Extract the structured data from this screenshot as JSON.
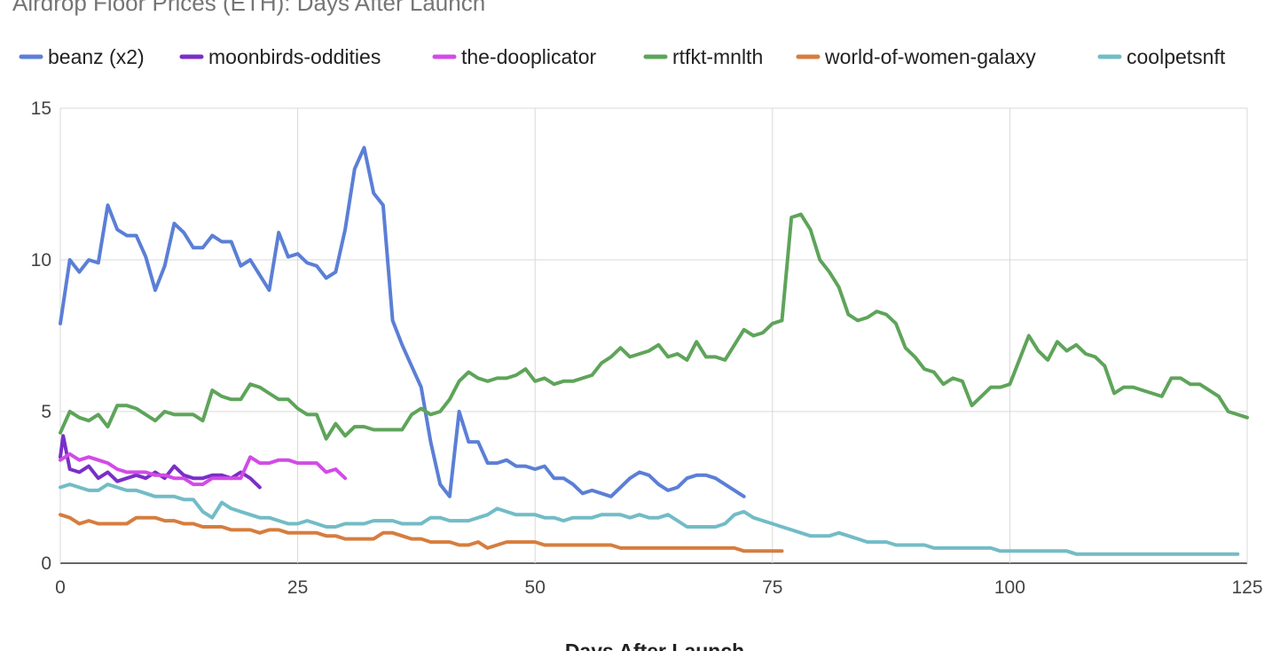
{
  "chart_data": {
    "type": "line",
    "title": "Airdrop Floor Prices (ETH): Days After Launch",
    "xlabel": "Days After Launch",
    "ylabel": "",
    "xlim": [
      0,
      125
    ],
    "ylim": [
      0,
      15
    ],
    "x_ticks": [
      0,
      25,
      50,
      75,
      100,
      125
    ],
    "y_ticks": [
      0,
      5,
      10,
      15
    ],
    "grid": true,
    "legend_position": "top",
    "series": [
      {
        "name": "beanz (x2)",
        "color": "#5b7fd6",
        "x": [
          0,
          1,
          2,
          3,
          4,
          5,
          6,
          7,
          8,
          9,
          10,
          11,
          12,
          13,
          14,
          15,
          16,
          17,
          18,
          19,
          20,
          21,
          22,
          23,
          24,
          25,
          26,
          27,
          28,
          29,
          30,
          31,
          32,
          33,
          34,
          35,
          36,
          37,
          38,
          39,
          40,
          41,
          42,
          43,
          44,
          45,
          46,
          47,
          48,
          49,
          50,
          51,
          52,
          53,
          54,
          55,
          56,
          57,
          58,
          59,
          60,
          61,
          62,
          63,
          64,
          65,
          66,
          67,
          68,
          69,
          70,
          71,
          72
        ],
        "values": [
          7.9,
          10.0,
          9.6,
          10.0,
          9.9,
          11.8,
          11.0,
          10.8,
          10.8,
          10.1,
          9.0,
          9.8,
          11.2,
          10.9,
          10.4,
          10.4,
          10.8,
          10.6,
          10.6,
          9.8,
          10.0,
          9.5,
          9.0,
          10.9,
          10.1,
          10.2,
          9.9,
          9.8,
          9.4,
          9.6,
          11.0,
          13.0,
          13.7,
          12.2,
          11.8,
          8.0,
          7.2,
          6.5,
          5.8,
          4.0,
          2.6,
          2.2,
          5.0,
          4.0,
          4.0,
          3.3,
          3.3,
          3.4,
          3.2,
          3.2,
          3.1,
          3.2,
          2.8,
          2.8,
          2.6,
          2.3,
          2.4,
          2.3,
          2.2,
          2.5,
          2.8,
          3.0,
          2.9,
          2.6,
          2.4,
          2.5,
          2.8,
          2.9,
          2.9,
          2.8,
          2.6,
          2.4,
          2.2
        ]
      },
      {
        "name": "moonbirds-oddities",
        "color": "#7a2fc7",
        "x": [
          0,
          0.3,
          1,
          2,
          3,
          4,
          5,
          6,
          7,
          8,
          9,
          10,
          11,
          12,
          13,
          14,
          15,
          16,
          17,
          18,
          19,
          20,
          21
        ],
        "values": [
          3.5,
          4.2,
          3.1,
          3.0,
          3.2,
          2.8,
          3.0,
          2.7,
          2.8,
          2.9,
          2.8,
          3.0,
          2.8,
          3.2,
          2.9,
          2.8,
          2.8,
          2.9,
          2.9,
          2.8,
          3.0,
          2.8,
          2.5
        ]
      },
      {
        "name": "the-dooplicator",
        "color": "#d24be6",
        "x": [
          0,
          1,
          2,
          3,
          4,
          5,
          6,
          7,
          8,
          9,
          10,
          11,
          12,
          13,
          14,
          15,
          16,
          17,
          18,
          19,
          20,
          21,
          22,
          23,
          24,
          25,
          26,
          27,
          28,
          29,
          30
        ],
        "values": [
          3.4,
          3.6,
          3.4,
          3.5,
          3.4,
          3.3,
          3.1,
          3.0,
          3.0,
          3.0,
          2.9,
          2.9,
          2.8,
          2.8,
          2.6,
          2.6,
          2.8,
          2.8,
          2.8,
          2.8,
          3.5,
          3.3,
          3.3,
          3.4,
          3.4,
          3.3,
          3.3,
          3.3,
          3.0,
          3.1,
          2.8
        ]
      },
      {
        "name": "rtfkt-mnlth",
        "color": "#5ea45a",
        "x": [
          0,
          1,
          2,
          3,
          4,
          5,
          6,
          7,
          8,
          9,
          10,
          11,
          12,
          13,
          14,
          15,
          16,
          17,
          18,
          19,
          20,
          21,
          22,
          23,
          24,
          25,
          26,
          27,
          28,
          29,
          30,
          31,
          32,
          33,
          34,
          35,
          36,
          37,
          38,
          39,
          40,
          41,
          42,
          43,
          44,
          45,
          46,
          47,
          48,
          49,
          50,
          51,
          52,
          53,
          54,
          55,
          56,
          57,
          58,
          59,
          60,
          61,
          62,
          63,
          64,
          65,
          66,
          67,
          68,
          69,
          70,
          71,
          72,
          73,
          74,
          75,
          76,
          77,
          78,
          79,
          80,
          81,
          82,
          83,
          84,
          85,
          86,
          87,
          88,
          89,
          90,
          91,
          92,
          93,
          94,
          95,
          96,
          97,
          98,
          99,
          100,
          101,
          102,
          103,
          104,
          105,
          106,
          107,
          108,
          109,
          110,
          111,
          112,
          113,
          114,
          115,
          116,
          117,
          118,
          119,
          120,
          121,
          122,
          123,
          124,
          125
        ],
        "values": [
          4.3,
          5.0,
          4.8,
          4.7,
          4.9,
          4.5,
          5.2,
          5.2,
          5.1,
          4.9,
          4.7,
          5.0,
          4.9,
          4.9,
          4.9,
          4.7,
          5.7,
          5.5,
          5.4,
          5.4,
          5.9,
          5.8,
          5.6,
          5.4,
          5.4,
          5.1,
          4.9,
          4.9,
          4.1,
          4.6,
          4.2,
          4.5,
          4.5,
          4.4,
          4.4,
          4.4,
          4.4,
          4.9,
          5.1,
          4.9,
          5.0,
          5.4,
          6.0,
          6.3,
          6.1,
          6.0,
          6.1,
          6.1,
          6.2,
          6.4,
          6.0,
          6.1,
          5.9,
          6.0,
          6.0,
          6.1,
          6.2,
          6.6,
          6.8,
          7.1,
          6.8,
          6.9,
          7.0,
          7.2,
          6.8,
          6.9,
          6.7,
          7.3,
          6.8,
          6.8,
          6.7,
          7.2,
          7.7,
          7.5,
          7.6,
          7.9,
          8.0,
          11.4,
          11.5,
          11.0,
          10.0,
          9.6,
          9.1,
          8.2,
          8.0,
          8.1,
          8.3,
          8.2,
          7.9,
          7.1,
          6.8,
          6.4,
          6.3,
          5.9,
          6.1,
          6.0,
          5.2,
          5.5,
          5.8,
          5.8,
          5.9,
          6.7,
          7.5,
          7.0,
          6.7,
          7.3,
          7.0,
          7.2,
          6.9,
          6.8,
          6.5,
          5.6,
          5.8,
          5.8,
          5.7,
          5.6,
          5.5,
          6.1,
          6.1,
          5.9,
          5.9,
          5.7,
          5.5,
          5.0,
          4.9,
          4.8
        ]
      },
      {
        "name": "world-of-women-galaxy",
        "color": "#d67d3e",
        "x": [
          0,
          1,
          2,
          3,
          4,
          5,
          6,
          7,
          8,
          9,
          10,
          11,
          12,
          13,
          14,
          15,
          16,
          17,
          18,
          19,
          20,
          21,
          22,
          23,
          24,
          25,
          26,
          27,
          28,
          29,
          30,
          31,
          32,
          33,
          34,
          35,
          36,
          37,
          38,
          39,
          40,
          41,
          42,
          43,
          44,
          45,
          46,
          47,
          48,
          49,
          50,
          51,
          52,
          53,
          54,
          55,
          56,
          57,
          58,
          59,
          60,
          61,
          62,
          63,
          64,
          65,
          66,
          67,
          68,
          69,
          70,
          71,
          72,
          73,
          74,
          75,
          76
        ],
        "values": [
          1.6,
          1.5,
          1.3,
          1.4,
          1.3,
          1.3,
          1.3,
          1.3,
          1.5,
          1.5,
          1.5,
          1.4,
          1.4,
          1.3,
          1.3,
          1.2,
          1.2,
          1.2,
          1.1,
          1.1,
          1.1,
          1.0,
          1.1,
          1.1,
          1.0,
          1.0,
          1.0,
          1.0,
          0.9,
          0.9,
          0.8,
          0.8,
          0.8,
          0.8,
          1.0,
          1.0,
          0.9,
          0.8,
          0.8,
          0.7,
          0.7,
          0.7,
          0.6,
          0.6,
          0.7,
          0.5,
          0.6,
          0.7,
          0.7,
          0.7,
          0.7,
          0.6,
          0.6,
          0.6,
          0.6,
          0.6,
          0.6,
          0.6,
          0.6,
          0.5,
          0.5,
          0.5,
          0.5,
          0.5,
          0.5,
          0.5,
          0.5,
          0.5,
          0.5,
          0.5,
          0.5,
          0.5,
          0.4,
          0.4,
          0.4,
          0.4,
          0.4
        ]
      },
      {
        "name": "coolpetsnft",
        "color": "#72bcc6",
        "x": [
          0,
          1,
          2,
          3,
          4,
          5,
          6,
          7,
          8,
          9,
          10,
          11,
          12,
          13,
          14,
          15,
          16,
          17,
          18,
          19,
          20,
          21,
          22,
          23,
          24,
          25,
          26,
          27,
          28,
          29,
          30,
          31,
          32,
          33,
          34,
          35,
          36,
          37,
          38,
          39,
          40,
          41,
          42,
          43,
          44,
          45,
          46,
          47,
          48,
          49,
          50,
          51,
          52,
          53,
          54,
          55,
          56,
          57,
          58,
          59,
          60,
          61,
          62,
          63,
          64,
          65,
          66,
          67,
          68,
          69,
          70,
          71,
          72,
          73,
          74,
          75,
          76,
          77,
          78,
          79,
          80,
          81,
          82,
          83,
          84,
          85,
          86,
          87,
          88,
          89,
          90,
          91,
          92,
          93,
          94,
          95,
          96,
          97,
          98,
          99,
          100,
          101,
          102,
          103,
          104,
          105,
          106,
          107,
          108,
          109,
          110,
          111,
          112,
          113,
          114,
          115,
          116,
          117,
          118,
          119,
          120,
          121,
          122,
          123,
          124
        ],
        "values": [
          2.5,
          2.6,
          2.5,
          2.4,
          2.4,
          2.6,
          2.5,
          2.4,
          2.4,
          2.3,
          2.2,
          2.2,
          2.2,
          2.1,
          2.1,
          1.7,
          1.5,
          2.0,
          1.8,
          1.7,
          1.6,
          1.5,
          1.5,
          1.4,
          1.3,
          1.3,
          1.4,
          1.3,
          1.2,
          1.2,
          1.3,
          1.3,
          1.3,
          1.4,
          1.4,
          1.4,
          1.3,
          1.3,
          1.3,
          1.5,
          1.5,
          1.4,
          1.4,
          1.4,
          1.5,
          1.6,
          1.8,
          1.7,
          1.6,
          1.6,
          1.6,
          1.5,
          1.5,
          1.4,
          1.5,
          1.5,
          1.5,
          1.6,
          1.6,
          1.6,
          1.5,
          1.6,
          1.5,
          1.5,
          1.6,
          1.4,
          1.2,
          1.2,
          1.2,
          1.2,
          1.3,
          1.6,
          1.7,
          1.5,
          1.4,
          1.3,
          1.2,
          1.1,
          1.0,
          0.9,
          0.9,
          0.9,
          1.0,
          0.9,
          0.8,
          0.7,
          0.7,
          0.7,
          0.6,
          0.6,
          0.6,
          0.6,
          0.5,
          0.5,
          0.5,
          0.5,
          0.5,
          0.5,
          0.5,
          0.4,
          0.4,
          0.4,
          0.4,
          0.4,
          0.4,
          0.4,
          0.4,
          0.3,
          0.3,
          0.3,
          0.3,
          0.3,
          0.3,
          0.3,
          0.3,
          0.3,
          0.3,
          0.3,
          0.3,
          0.3,
          0.3,
          0.3,
          0.3,
          0.3,
          0.3
        ]
      }
    ]
  }
}
